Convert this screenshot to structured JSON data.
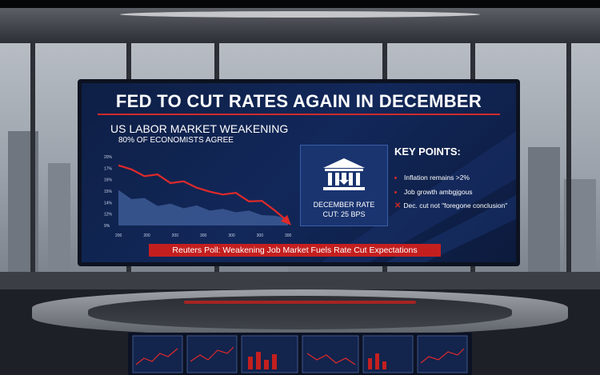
{
  "broadcast": {
    "headline": "FED TO CUT RATES AGAIN IN DECEMBER",
    "ticker": "Reuters Poll: Weakening Job Market Fuels Rate Cut Expectations"
  },
  "chart_data": {
    "type": "area",
    "title": "US LABOR MARKET WEAKENING",
    "subtitle": "80% OF ECONOMISTS AGREE",
    "y_tick_labels": [
      "20%",
      "17%",
      "16%",
      "15%",
      "14%",
      "12%",
      "9%"
    ],
    "x_tick_labels": [
      "200",
      "200",
      "200",
      "300",
      "300",
      "300",
      "300"
    ],
    "series": [
      {
        "values": [
          18.5,
          17.8,
          16.6,
          16.9,
          15.4,
          15.7,
          14.6,
          13.9,
          13.4,
          13.7,
          12.2,
          12.3,
          10.6,
          8.6
        ]
      },
      {
        "values": [
          14.2,
          12.6,
          12.8,
          11.4,
          11.8,
          11.0,
          11.5,
          10.6,
          10.9,
          10.3,
          10.6,
          9.8,
          9.7,
          9.2
        ]
      }
    ],
    "colors": {
      "line": "#e02a2a",
      "area": "#3d5b95"
    }
  },
  "info_box": {
    "icon": "bank-building-icon",
    "line1": "DECEMBER RATE",
    "line2": "CUT: 25 BPS"
  },
  "key_points": {
    "title": "KEY POINTS:",
    "items": [
      "Inflation remains >2%",
      "Job growth ambgjgous",
      "Dec. cut not \"foregone conclusion\""
    ]
  },
  "colors": {
    "screen_bg": "#12285a",
    "accent_red": "#c41f1f"
  }
}
